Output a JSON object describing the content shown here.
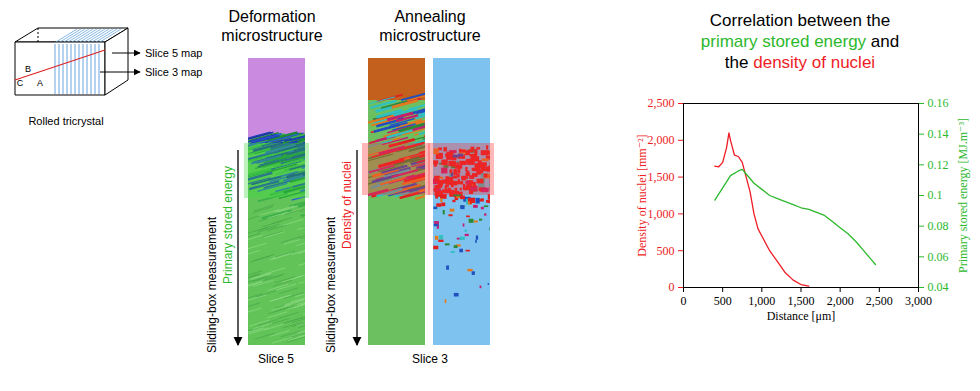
{
  "chart_data": {
    "type": "line",
    "title": [
      "Correlation between the",
      "primary stored energy and",
      "the density of nuclei"
    ],
    "xlabel": "Distance [μm]",
    "ylabel": "Density of nuclei [mm⁻²]",
    "y2label": "Primary stored energy [MJ.m⁻³]",
    "xlim": [
      0,
      3000
    ],
    "xticks": [
      0,
      500,
      1000,
      1500,
      2000,
      2500,
      3000
    ],
    "ylim": [
      0,
      2500
    ],
    "yticks": [
      0,
      500,
      1000,
      1500,
      2000,
      2500
    ],
    "y2lim": [
      0.04,
      0.16
    ],
    "y2ticks": [
      0.04,
      0.06,
      0.08,
      0.1,
      0.12,
      0.14,
      0.16
    ],
    "grid": false,
    "series": [
      {
        "name": "density of nuclei",
        "color": "#ee1c25",
        "x": [
          400,
          450,
          500,
          550,
          580,
          600,
          650,
          700,
          750,
          800,
          850,
          900,
          950,
          1000,
          1100,
          1200,
          1300,
          1400,
          1500,
          1600
        ],
        "values": [
          1650,
          1640,
          1700,
          1900,
          2100,
          2000,
          1800,
          1780,
          1700,
          1500,
          1300,
          1000,
          800,
          700,
          500,
          350,
          200,
          100,
          40,
          20
        ]
      },
      {
        "name": "primary stored energy",
        "color": "#2db82d",
        "axis": "y2",
        "x": [
          400,
          500,
          600,
          700,
          750,
          800,
          900,
          1000,
          1100,
          1200,
          1300,
          1400,
          1500,
          1600,
          1700,
          1800,
          1900,
          2000,
          2100,
          2200,
          2300,
          2400,
          2450
        ],
        "values": [
          0.097,
          0.105,
          0.113,
          0.116,
          0.117,
          0.114,
          0.108,
          0.104,
          0.1,
          0.098,
          0.096,
          0.094,
          0.092,
          0.091,
          0.089,
          0.087,
          0.083,
          0.079,
          0.075,
          0.07,
          0.064,
          0.058,
          0.055
        ]
      }
    ]
  },
  "schematic": {
    "labels": [
      "B",
      "C",
      "A"
    ],
    "slice_labels": [
      "Slice 5 map",
      "Slice 3 map"
    ],
    "caption": "Rolled tricrystal"
  },
  "deformation": {
    "title": [
      "Deformation",
      "microstructure"
    ],
    "arrow_label": "Sliding-box measurement",
    "measure": "Primary stored energy",
    "caption": "Slice 5"
  },
  "annealing": {
    "title": [
      "Annealing",
      "microstructure"
    ],
    "arrow_label": "Sliding-box measurement",
    "measure": "Density of nuclei",
    "caption": "Slice 3"
  }
}
